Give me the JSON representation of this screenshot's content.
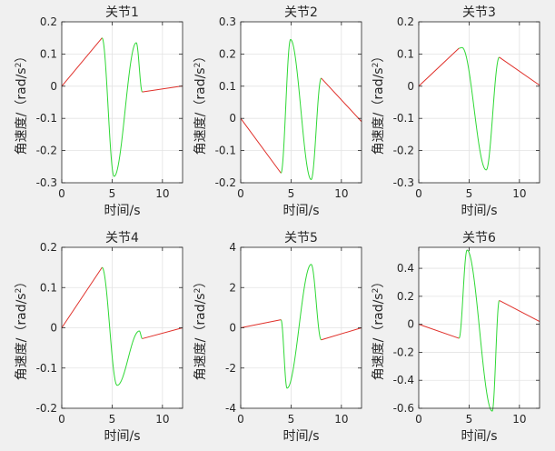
{
  "colors": {
    "figure_bg": "#f0f0f0",
    "axes_bg": "#ffffff",
    "axis": "#262626",
    "grid": "#e3e3e3",
    "line_linear": "#e0302a",
    "line_oscillation": "#2ed834"
  },
  "chart_data": [
    {
      "type": "line",
      "title": "关节1",
      "xlabel": "时间/s",
      "ylabel": "角速度/（rad/s²）",
      "ylabel_main": "角速度/（rad/s",
      "ylabel_sup": "2",
      "ylabel_close": "）",
      "xlim": [
        0,
        12
      ],
      "ylim": [
        -0.3,
        0.2
      ],
      "grid": true,
      "xticks": [
        "0",
        "5",
        "10"
      ],
      "yticks": [
        "-0.3",
        "-0.2",
        "-0.1",
        "0",
        "0.1",
        "0.2"
      ],
      "segments": {
        "ramp": {
          "x": [
            0,
            4
          ],
          "y": [
            0,
            0.15
          ]
        },
        "wave": {
          "x": [
            4,
            5.2,
            7.4,
            8
          ],
          "y": [
            0.15,
            -0.28,
            0.135,
            -0.018
          ]
        },
        "tail": {
          "x": [
            8,
            12
          ],
          "y": [
            -0.018,
            0.001
          ]
        }
      }
    },
    {
      "type": "line",
      "title": "关节2",
      "xlabel": "时间/s",
      "ylabel": "角速度/（rad/s²）",
      "ylabel_main": "角速度/（rad/s",
      "ylabel_sup": "2",
      "ylabel_close": "）",
      "xlim": [
        0,
        12
      ],
      "ylim": [
        -0.2,
        0.3
      ],
      "grid": true,
      "xticks": [
        "0",
        "5",
        "10"
      ],
      "yticks": [
        "-0.2",
        "-0.1",
        "0",
        "0.1",
        "0.2",
        "0.3"
      ],
      "segments": {
        "ramp": {
          "x": [
            0,
            4
          ],
          "y": [
            0,
            -0.17
          ]
        },
        "wave": {
          "x": [
            4,
            4.95,
            7,
            8
          ],
          "y": [
            -0.17,
            0.245,
            -0.19,
            0.125
          ]
        },
        "tail": {
          "x": [
            8,
            12
          ],
          "y": [
            0.125,
            -0.01
          ]
        }
      }
    },
    {
      "type": "line",
      "title": "关节3",
      "xlabel": "时间/s",
      "ylabel": "角速度/（rad/s²）",
      "ylabel_main": "角速度/（rad/s",
      "ylabel_sup": "2",
      "ylabel_close": "）",
      "xlim": [
        0,
        12
      ],
      "ylim": [
        -0.3,
        0.2
      ],
      "grid": true,
      "xticks": [
        "0",
        "5",
        "10"
      ],
      "yticks": [
        "-0.3",
        "-0.2",
        "-0.1",
        "0",
        "0.1",
        "0.2"
      ],
      "segments": {
        "ramp": {
          "x": [
            0,
            4
          ],
          "y": [
            0,
            0.118
          ]
        },
        "wave": {
          "x": [
            4,
            4.3,
            6.7,
            8
          ],
          "y": [
            0.118,
            0.12,
            -0.26,
            0.09
          ]
        },
        "tail": {
          "x": [
            8,
            12
          ],
          "y": [
            0.09,
            0.003
          ]
        }
      }
    },
    {
      "type": "line",
      "title": "关节4",
      "xlabel": "时间/s",
      "ylabel": "角速度/（rad/s²）",
      "ylabel_main": "角速度/（rad/s",
      "ylabel_sup": "2",
      "ylabel_close": "）",
      "xlim": [
        0,
        12
      ],
      "ylim": [
        -0.2,
        0.2
      ],
      "grid": true,
      "xticks": [
        "0",
        "5",
        "10"
      ],
      "yticks": [
        "-0.2",
        "-0.1",
        "0",
        "0.1",
        "0.2"
      ],
      "segments": {
        "ramp": {
          "x": [
            0,
            4
          ],
          "y": [
            0,
            0.15
          ]
        },
        "wave": {
          "x": [
            4,
            5.5,
            7.7,
            8
          ],
          "y": [
            0.15,
            -0.143,
            -0.008,
            -0.027
          ]
        },
        "tail": {
          "x": [
            8,
            12
          ],
          "y": [
            -0.027,
            0
          ]
        }
      }
    },
    {
      "type": "line",
      "title": "关节5",
      "xlabel": "时间/s",
      "ylabel": "角速度/（rad/s²）",
      "ylabel_main": "角速度/（rad/s",
      "ylabel_sup": "2",
      "ylabel_close": "）",
      "xlim": [
        0,
        12
      ],
      "ylim": [
        -4,
        4
      ],
      "grid": true,
      "xticks": [
        "0",
        "5",
        "10"
      ],
      "yticks": [
        "-4",
        "-2",
        "0",
        "2",
        "4"
      ],
      "segments": {
        "ramp": {
          "x": [
            0,
            4
          ],
          "y": [
            0,
            0.4
          ]
        },
        "wave": {
          "x": [
            4,
            4.6,
            7,
            8
          ],
          "y": [
            0.4,
            -3.0,
            3.15,
            -0.6
          ]
        },
        "tail": {
          "x": [
            8,
            12
          ],
          "y": [
            -0.6,
            0
          ]
        }
      }
    },
    {
      "type": "line",
      "title": "关节6",
      "xlabel": "时间/s",
      "ylabel": "角速度/（rad/s²）",
      "ylabel_main": "角速度/（rad/s",
      "ylabel_sup": "2",
      "ylabel_close": "）",
      "xlim": [
        0,
        12
      ],
      "ylim": [
        -0.6,
        0.55
      ],
      "grid": true,
      "xticks": [
        "0",
        "5",
        "10"
      ],
      "yticks": [
        "-0.6",
        "-0.4",
        "-0.2",
        "0",
        "0.2",
        "0.4"
      ],
      "segments": {
        "ramp": {
          "x": [
            0,
            4
          ],
          "y": [
            0,
            -0.1
          ]
        },
        "wave": {
          "x": [
            4,
            4.8,
            7.3,
            8
          ],
          "y": [
            -0.1,
            0.53,
            -0.62,
            0.17
          ]
        },
        "tail": {
          "x": [
            8,
            12
          ],
          "y": [
            0.17,
            0.02
          ]
        }
      }
    }
  ]
}
